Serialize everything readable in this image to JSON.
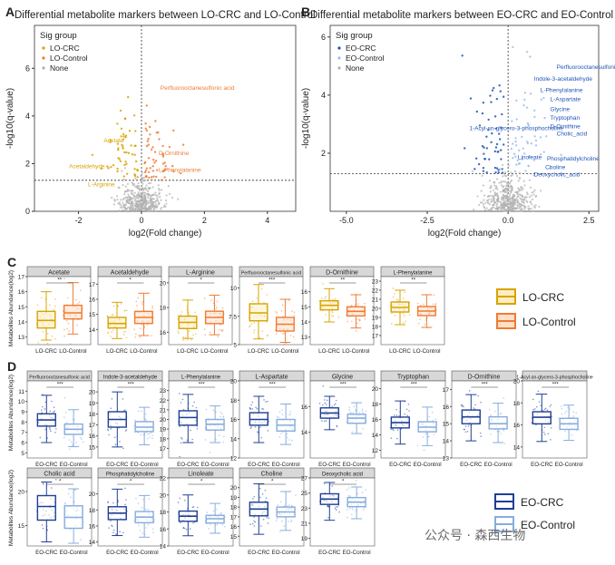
{
  "watermark": "公众号 · 森西生物",
  "panelA": {
    "letter": "A",
    "title": "Differential metabolite markers between LO-CRC and LO-Control",
    "xlabel": "log2(Fold change)",
    "ylabel": "-log10(q-value)",
    "xlim": [
      -3.4,
      4.9
    ],
    "ylim": [
      0,
      7.8
    ],
    "xticks": [
      -2,
      0,
      2,
      4
    ],
    "yticks": [
      0,
      2,
      4,
      6
    ],
    "threshold_y": 1.3,
    "legend": {
      "title": "Sig group",
      "items": [
        "LO-CRC",
        "LO-Control",
        "None"
      ],
      "colors": [
        "#d9a300",
        "#f07b33",
        "#b0b0b0"
      ]
    },
    "labels": [
      {
        "text": "Perfluorooctanesulfonic acid",
        "x": 0.6,
        "y": 5.1,
        "color": "#f07b33"
      },
      {
        "text": "Acetate",
        "x": -1.2,
        "y": 2.9,
        "color": "#d9a300"
      },
      {
        "text": "D-Ornithine",
        "x": 0.55,
        "y": 2.35,
        "color": "#f07b33"
      },
      {
        "text": "Acetaldehyde",
        "x": -2.3,
        "y": 1.8,
        "color": "#d9a300"
      },
      {
        "text": "L-Phenylalanine",
        "x": 0.55,
        "y": 1.65,
        "color": "#f07b33"
      },
      {
        "text": "L-Arginine",
        "x": -1.7,
        "y": 1.05,
        "color": "#d9a300"
      }
    ]
  },
  "panelB": {
    "letter": "B",
    "title": "Differential metabolite markers between EO-CRC and EO-Control",
    "xlabel": "log2(Fold change)",
    "ylabel": "-log10(q-value)",
    "xlim": [
      -5.5,
      2.8
    ],
    "ylim": [
      0,
      6.4
    ],
    "xticks": [
      -5.0,
      -2.5,
      0.0,
      2.5
    ],
    "xtick_labels": [
      "-5.0",
      "-2.5",
      "0.0",
      "2.5"
    ],
    "yticks": [
      2,
      4,
      6
    ],
    "threshold_y": 1.3,
    "legend": {
      "title": "Sig group",
      "items": [
        "EO-CRC",
        "EO-Control",
        "None"
      ],
      "colors": [
        "#2054b8",
        "#9ec1ec",
        "#b0b0b0"
      ]
    },
    "labels": [
      {
        "text": "Perfluorooctanesulfonic acid",
        "x": 1.5,
        "y": 4.9,
        "color": "#2054b8"
      },
      {
        "text": "Indole-3-acetaldehyde",
        "x": 0.8,
        "y": 4.5,
        "color": "#2054b8"
      },
      {
        "text": "L-Phenylalanine",
        "x": 1.0,
        "y": 4.1,
        "color": "#2054b8"
      },
      {
        "text": "L-Aspartate",
        "x": 1.3,
        "y": 3.8,
        "color": "#2054b8"
      },
      {
        "text": "Glycine",
        "x": 1.3,
        "y": 3.45,
        "color": "#2054b8"
      },
      {
        "text": "Tryptophan",
        "x": 1.3,
        "y": 3.15,
        "color": "#2054b8"
      },
      {
        "text": "D-Ornithine",
        "x": 1.3,
        "y": 2.85,
        "color": "#2054b8"
      },
      {
        "text": "Cholic_acid",
        "x": 1.5,
        "y": 2.6,
        "color": "#2054b8"
      },
      {
        "text": "1-Acyl-sn-glycero-3-phosphocholine",
        "x": -1.2,
        "y": 2.8,
        "color": "#2054b8"
      },
      {
        "text": "Linoleate",
        "x": 0.3,
        "y": 1.8,
        "color": "#2054b8"
      },
      {
        "text": "Phosphatidylcholine",
        "x": 1.2,
        "y": 1.75,
        "color": "#2054b8"
      },
      {
        "text": "Choline",
        "x": 1.15,
        "y": 1.45,
        "color": "#2054b8"
      },
      {
        "text": "Deoxycholic_acid",
        "x": 0.8,
        "y": 1.2,
        "color": "#2054b8"
      }
    ]
  },
  "panelC": {
    "letter": "C",
    "ylabel": "Metabolites Abundance(log2)",
    "groups": [
      "LO-CRC",
      "LO-Control"
    ],
    "colors": [
      "#d9a300",
      "#f07b33"
    ],
    "fills": [
      "#fbeec0",
      "#fde0c8"
    ],
    "legend": [
      "LO-CRC",
      "LO-Control"
    ],
    "boxes": [
      {
        "name": "Acetate",
        "ylim": [
          12.5,
          17
        ],
        "yticks": [
          13,
          14,
          15,
          16,
          17
        ],
        "sig": "**",
        "stats": [
          {
            "q1": 13.6,
            "med": 14.1,
            "q3": 14.7,
            "lo": 12.8,
            "hi": 16.0
          },
          {
            "q1": 14.2,
            "med": 14.6,
            "q3": 15.1,
            "lo": 13.2,
            "hi": 16.6
          }
        ]
      },
      {
        "name": "Acetaldehyde",
        "ylim": [
          13,
          17.5
        ],
        "yticks": [
          14,
          15,
          16,
          17
        ],
        "sig": "*",
        "stats": [
          {
            "q1": 14.1,
            "med": 14.4,
            "q3": 14.8,
            "lo": 13.4,
            "hi": 15.8
          },
          {
            "q1": 14.4,
            "med": 14.8,
            "q3": 15.2,
            "lo": 13.6,
            "hi": 16.4
          }
        ]
      },
      {
        "name": "L-Arginine",
        "ylim": [
          15,
          20.5
        ],
        "yticks": [
          16,
          18,
          20
        ],
        "sig": "*",
        "stats": [
          {
            "q1": 16.3,
            "med": 16.8,
            "q3": 17.3,
            "lo": 15.5,
            "hi": 18.6
          },
          {
            "q1": 16.7,
            "med": 17.2,
            "q3": 17.7,
            "lo": 15.8,
            "hi": 19.0
          }
        ]
      },
      {
        "name": "Perfluorooctanesulfonic acid",
        "ylim": [
          5,
          11
        ],
        "yticks": [
          5.0,
          7.5,
          10.0
        ],
        "sig": "***",
        "stats": [
          {
            "q1": 7.1,
            "med": 7.8,
            "q3": 8.6,
            "lo": 5.5,
            "hi": 10.3
          },
          {
            "q1": 6.2,
            "med": 6.8,
            "q3": 7.4,
            "lo": 5.2,
            "hi": 9.0
          }
        ]
      },
      {
        "name": "D-Ornithine",
        "ylim": [
          12.5,
          17
        ],
        "yticks": [
          13,
          14,
          15,
          16
        ],
        "sig": "**",
        "stats": [
          {
            "q1": 14.8,
            "med": 15.1,
            "q3": 15.4,
            "lo": 14.0,
            "hi": 16.2
          },
          {
            "q1": 14.4,
            "med": 14.7,
            "q3": 15.0,
            "lo": 13.6,
            "hi": 15.8
          }
        ]
      },
      {
        "name": "L-Phenylalanine",
        "ylim": [
          16,
          23.5
        ],
        "yticks": [
          17,
          18,
          19,
          20,
          21,
          22,
          23
        ],
        "sig": "**",
        "stats": [
          {
            "q1": 19.6,
            "med": 20.1,
            "q3": 20.7,
            "lo": 18.2,
            "hi": 22.0
          },
          {
            "q1": 19.2,
            "med": 19.7,
            "q3": 20.2,
            "lo": 17.9,
            "hi": 21.5
          }
        ]
      }
    ]
  },
  "panelD": {
    "letter": "D",
    "ylabel": "Metabolites Abundance(log2)",
    "groups": [
      "EO-CRC",
      "EO-Control"
    ],
    "colors": [
      "#1f3f96",
      "#86acdd"
    ],
    "fills": [
      "#ffffff",
      "#ffffff"
    ],
    "legend": [
      "EO-CRC",
      "EO-Control"
    ],
    "boxes": [
      {
        "name": "Perfluorooctanesulfonic acid",
        "ylim": [
          4.5,
          12
        ],
        "yticks": [
          5,
          6,
          7,
          8,
          9,
          10,
          11
        ],
        "sig": "***",
        "stats": [
          {
            "q1": 7.6,
            "med": 8.2,
            "q3": 8.8,
            "lo": 6.0,
            "hi": 10.6
          },
          {
            "q1": 6.8,
            "med": 7.3,
            "q3": 7.8,
            "lo": 5.6,
            "hi": 9.2
          }
        ]
      },
      {
        "name": "Indole-3-acetaldehyde",
        "ylim": [
          14,
          21
        ],
        "yticks": [
          15,
          16,
          17,
          18,
          19,
          20
        ],
        "sig": "***",
        "stats": [
          {
            "q1": 16.8,
            "med": 17.5,
            "q3": 18.2,
            "lo": 15.0,
            "hi": 20.0
          },
          {
            "q1": 16.4,
            "med": 16.8,
            "q3": 17.3,
            "lo": 15.2,
            "hi": 18.6
          }
        ]
      },
      {
        "name": "L-Phenylalanine",
        "ylim": [
          16,
          24
        ],
        "yticks": [
          17,
          18,
          19,
          20,
          21,
          22,
          23
        ],
        "sig": "***",
        "stats": [
          {
            "q1": 19.4,
            "med": 20.2,
            "q3": 20.9,
            "lo": 17.6,
            "hi": 22.6
          },
          {
            "q1": 18.9,
            "med": 19.5,
            "q3": 20.0,
            "lo": 17.6,
            "hi": 21.4
          }
        ]
      },
      {
        "name": "L-Aspartate",
        "ylim": [
          12,
          20
        ],
        "yticks": [
          12,
          14,
          16,
          18,
          20
        ],
        "sig": "***",
        "stats": [
          {
            "q1": 15.4,
            "med": 16.0,
            "q3": 16.7,
            "lo": 13.6,
            "hi": 18.4
          },
          {
            "q1": 14.8,
            "med": 15.4,
            "q3": 16.0,
            "lo": 13.4,
            "hi": 17.6
          }
        ]
      },
      {
        "name": "Glycine",
        "ylim": [
          12,
          18
        ],
        "yticks": [
          14,
          16
        ],
        "sig": "***",
        "stats": [
          {
            "q1": 15.1,
            "med": 15.5,
            "q3": 15.9,
            "lo": 14.2,
            "hi": 16.8
          },
          {
            "q1": 14.7,
            "med": 15.1,
            "q3": 15.4,
            "lo": 13.9,
            "hi": 16.3
          }
        ]
      },
      {
        "name": "Tryptophan",
        "ylim": [
          11,
          21
        ],
        "yticks": [
          12,
          14,
          16,
          18,
          20
        ],
        "sig": "***",
        "stats": [
          {
            "q1": 14.9,
            "med": 15.6,
            "q3": 16.3,
            "lo": 12.8,
            "hi": 18.4
          },
          {
            "q1": 14.4,
            "med": 15.0,
            "q3": 15.7,
            "lo": 12.6,
            "hi": 17.6
          }
        ]
      },
      {
        "name": "D-Ornithine",
        "ylim": [
          13,
          17.5
        ],
        "yticks": [
          13,
          14,
          15,
          16,
          17
        ],
        "sig": "***",
        "stats": [
          {
            "q1": 15.0,
            "med": 15.4,
            "q3": 15.8,
            "lo": 14.0,
            "hi": 16.7
          },
          {
            "q1": 14.7,
            "med": 15.0,
            "q3": 15.4,
            "lo": 13.9,
            "hi": 16.2
          }
        ]
      },
      {
        "name": "1-Acyl-sn-glycero-3-phosphocholine",
        "ylim": [
          13,
          20
        ],
        "yticks": [
          14,
          16,
          18,
          20
        ],
        "sig": "***",
        "stats": [
          {
            "q1": 16.1,
            "med": 16.7,
            "q3": 17.2,
            "lo": 14.5,
            "hi": 18.8
          },
          {
            "q1": 15.6,
            "med": 16.1,
            "q3": 16.6,
            "lo": 14.6,
            "hi": 17.8
          }
        ]
      },
      {
        "name": "Cholic acid",
        "ylim": [
          12,
          22
        ],
        "yticks": [
          15,
          20
        ],
        "sig": "*",
        "stats": [
          {
            "q1": 15.8,
            "med": 17.8,
            "q3": 19.4,
            "lo": 12.6,
            "hi": 21.4
          },
          {
            "q1": 14.6,
            "med": 16.2,
            "q3": 17.9,
            "lo": 12.4,
            "hi": 20.4
          }
        ]
      },
      {
        "name": "Phosphatidylcholine",
        "ylim": [
          13.5,
          22
        ],
        "yticks": [
          14,
          16,
          18,
          20
        ],
        "sig": "*",
        "stats": [
          {
            "q1": 16.8,
            "med": 17.6,
            "q3": 18.4,
            "lo": 14.8,
            "hi": 20.6
          },
          {
            "q1": 16.4,
            "med": 17.1,
            "q3": 17.8,
            "lo": 14.6,
            "hi": 19.8
          }
        ]
      },
      {
        "name": "Linoleate",
        "ylim": [
          14,
          22
        ],
        "yticks": [
          14,
          16,
          18,
          20,
          22
        ],
        "sig": "*",
        "stats": [
          {
            "q1": 16.9,
            "med": 17.5,
            "q3": 18.1,
            "lo": 15.2,
            "hi": 20.0
          },
          {
            "q1": 16.7,
            "med": 17.2,
            "q3": 17.6,
            "lo": 15.5,
            "hi": 19.0
          }
        ]
      },
      {
        "name": "Choline",
        "ylim": [
          14,
          21
        ],
        "yticks": [
          15,
          16,
          17,
          18,
          19,
          20
        ],
        "sig": "*",
        "stats": [
          {
            "q1": 17.1,
            "med": 17.8,
            "q3": 18.5,
            "lo": 15.2,
            "hi": 20.4
          },
          {
            "q1": 17.0,
            "med": 17.5,
            "q3": 18.0,
            "lo": 15.6,
            "hi": 19.6
          }
        ]
      },
      {
        "name": "Deoxycholic acid",
        "ylim": [
          18,
          27
        ],
        "yticks": [
          19,
          21,
          23,
          25,
          27
        ],
        "sig": "*",
        "stats": [
          {
            "q1": 23.5,
            "med": 24.2,
            "q3": 24.9,
            "lo": 21.4,
            "hi": 26.4
          },
          {
            "q1": 23.2,
            "med": 23.8,
            "q3": 24.4,
            "lo": 21.6,
            "hi": 25.8
          }
        ]
      }
    ]
  }
}
